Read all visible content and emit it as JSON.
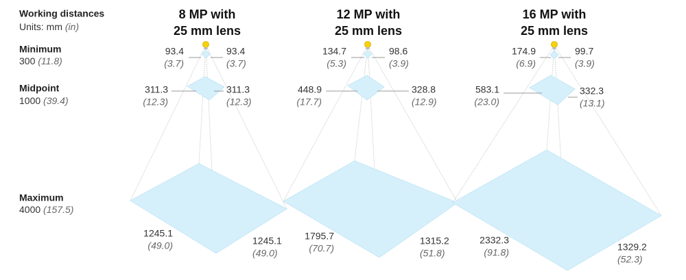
{
  "legend": {
    "title": "Working distances",
    "units": "Units: mm",
    "units_alt": "(in)"
  },
  "rows": [
    {
      "label": "Minimum",
      "mm": "300",
      "in": "(11.8)"
    },
    {
      "label": "Midpoint",
      "mm": "1000",
      "in": "(39.4)"
    },
    {
      "label": "Maximum",
      "mm": "4000",
      "in": "(157.5)"
    }
  ],
  "cameras": [
    {
      "title": [
        "8 MP with",
        "25 mm lens"
      ],
      "min": {
        "left": [
          "93.4",
          "(3.7)"
        ],
        "right": [
          "93.4",
          "(3.7)"
        ]
      },
      "mid": {
        "left": [
          "311.3",
          "(12.3)"
        ],
        "right": [
          "311.3",
          "(12.3)"
        ]
      },
      "max": {
        "left": [
          "1245.1",
          "(49.0)"
        ],
        "right": [
          "1245.1",
          "(49.0)"
        ]
      }
    },
    {
      "title": [
        "12 MP with",
        "25 mm lens"
      ],
      "min": {
        "left": [
          "134.7",
          "(5.3)"
        ],
        "right": [
          "98.6",
          "(3.9)"
        ]
      },
      "mid": {
        "left": [
          "448.9",
          "(17.7)"
        ],
        "right": [
          "328.8",
          "(12.9)"
        ]
      },
      "max": {
        "left": [
          "1795.7",
          "(70.7)"
        ],
        "right": [
          "1315.2",
          "(51.8)"
        ]
      }
    },
    {
      "title": [
        "16 MP with",
        "25 mm lens"
      ],
      "min": {
        "left": [
          "174.9",
          "(6.9)"
        ],
        "right": [
          "99.7",
          "(3.9)"
        ]
      },
      "mid": {
        "left": [
          "583.1",
          "(23.0)"
        ],
        "right": [
          "332.3",
          "(13.1)"
        ]
      },
      "max": {
        "left": [
          "2332.3",
          "(91.8)"
        ],
        "right": [
          "1329.2",
          "(52.3)"
        ]
      }
    }
  ]
}
